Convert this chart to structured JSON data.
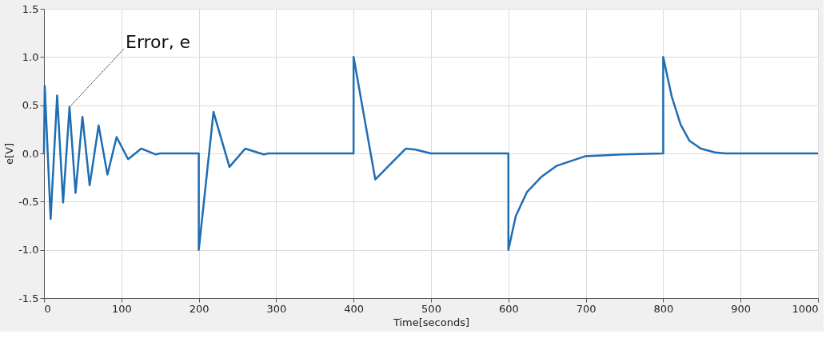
{
  "chart_data": {
    "type": "line",
    "xlabel": "Time[seconds]",
    "ylabel": "e[V]",
    "annotations": [
      {
        "text": "Error, e",
        "x": 33,
        "y": 0.48
      }
    ],
    "series": [
      {
        "color": "#1f6db3",
        "x": [
          0,
          1,
          8.6,
          17,
          24.7,
          33,
          40.8,
          49.7,
          59,
          70.6,
          82,
          93.8,
          108.7,
          125.6,
          144,
          150,
          200,
          200,
          219,
          239.6,
          260,
          284,
          290,
          400,
          400,
          428,
          467.5,
          480,
          500,
          600,
          600,
          609.5,
          624,
          643,
          662,
          699,
          747,
          800,
          800,
          811,
          822.5,
          834,
          848.7,
          867,
          880,
          1000
        ],
        "values": [
          0,
          0.7,
          -0.68,
          0.6,
          -0.51,
          0.48,
          -0.41,
          0.38,
          -0.33,
          0.29,
          -0.22,
          0.17,
          -0.06,
          0.05,
          -0.01,
          0,
          0,
          -1.0,
          0.43,
          -0.14,
          0.05,
          -0.01,
          0,
          0,
          1.0,
          -0.27,
          0.05,
          0.04,
          0,
          0,
          -1.0,
          -0.65,
          -0.4,
          -0.24,
          -0.13,
          -0.03,
          -0.01,
          0,
          1.0,
          0.59,
          0.3,
          0.13,
          0.05,
          0.01,
          0,
          0
        ]
      }
    ],
    "xlim": [
      0,
      1000
    ],
    "xticks": [
      0,
      100,
      200,
      300,
      400,
      500,
      600,
      700,
      800,
      900,
      1000
    ],
    "ylim": [
      -1.5,
      1.5
    ],
    "yticks": [
      {
        "value": -1.5,
        "label": "-1.5"
      },
      {
        "value": -1,
        "label": "-1.0"
      },
      {
        "value": -0.5,
        "label": "-0.5"
      },
      {
        "value": 0,
        "label": "0.0"
      },
      {
        "value": 0.5,
        "label": "0.5"
      },
      {
        "value": 1,
        "label": "1.0"
      },
      {
        "value": 1.5,
        "label": "1.5"
      }
    ],
    "grid": true,
    "marker": "none",
    "line_style": "solid"
  }
}
